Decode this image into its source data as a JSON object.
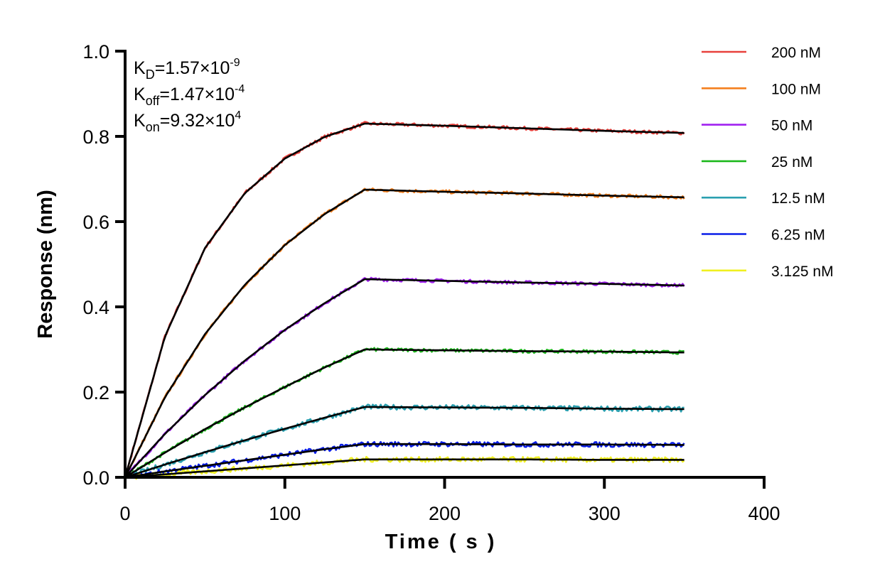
{
  "chart_data": {
    "type": "line",
    "xlabel": "Time ( s )",
    "ylabel": "Response (nm)",
    "xlim": [
      0,
      400
    ],
    "ylim": [
      0,
      1.0
    ],
    "xticks": [
      "0",
      "100",
      "200",
      "300",
      "400"
    ],
    "yticks": [
      "0.0",
      "0.2",
      "0.4",
      "0.6",
      "0.8",
      "1.0"
    ],
    "grid": false,
    "legend_position": "top-right",
    "annotation": {
      "kd": {
        "label": "K",
        "sub": "D",
        "value": "=1.57×10",
        "exp": "-9"
      },
      "koff": {
        "label": "K",
        "sub": "off",
        "value": "=1.47×10",
        "exp": "-4"
      },
      "kon": {
        "label": "K",
        "sub": "on",
        "value": "=9.32×10",
        "exp": "4"
      }
    },
    "fit_color": "#000000",
    "x": [
      0,
      25,
      50,
      75,
      100,
      125,
      150,
      200,
      250,
      300,
      350
    ],
    "series": [
      {
        "name": "200 nM",
        "color": "#e8413c",
        "values": [
          0,
          0.331,
          0.538,
          0.667,
          0.748,
          0.799,
          0.83,
          0.825,
          0.819,
          0.813,
          0.808
        ]
      },
      {
        "name": "100 nM",
        "color": "#f4801f",
        "values": [
          0,
          0.188,
          0.336,
          0.452,
          0.545,
          0.618,
          0.675,
          0.67,
          0.666,
          0.661,
          0.657
        ]
      },
      {
        "name": "50 nM",
        "color": "#a020f0",
        "values": [
          0,
          0.102,
          0.193,
          0.274,
          0.346,
          0.409,
          0.465,
          0.461,
          0.457,
          0.454,
          0.45
        ]
      },
      {
        "name": "25 nM",
        "color": "#1db81d",
        "values": [
          0,
          0.058,
          0.113,
          0.164,
          0.212,
          0.258,
          0.3,
          0.298,
          0.296,
          0.295,
          0.293
        ]
      },
      {
        "name": "12.5 nM",
        "color": "#2aa0b0",
        "values": [
          0,
          0.03,
          0.059,
          0.087,
          0.114,
          0.14,
          0.165,
          0.164,
          0.163,
          0.161,
          0.16
        ]
      },
      {
        "name": "6.25 nM",
        "color": "#0a1ee8",
        "values": [
          0,
          0.014,
          0.027,
          0.04,
          0.053,
          0.066,
          0.078,
          0.078,
          0.077,
          0.077,
          0.076
        ]
      },
      {
        "name": "3.125 nM",
        "color": "#f0f020",
        "values": [
          0,
          0.007,
          0.014,
          0.021,
          0.028,
          0.035,
          0.042,
          0.042,
          0.042,
          0.041,
          0.041
        ]
      }
    ]
  }
}
